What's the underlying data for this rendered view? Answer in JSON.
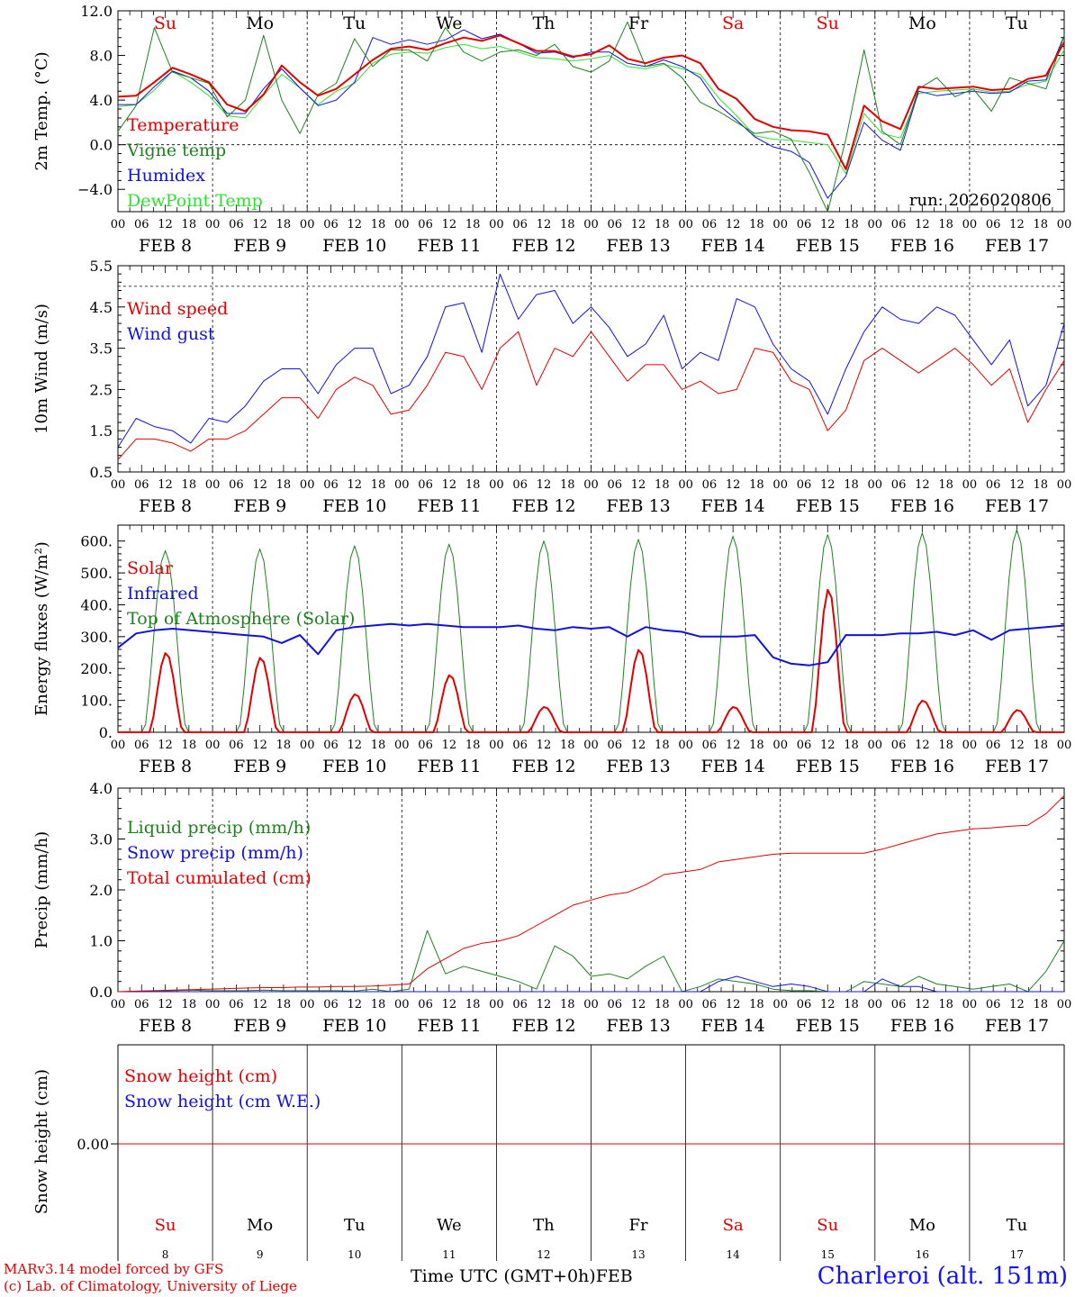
{
  "chart_data": [
    {
      "type": "line",
      "id": "temp",
      "ylabel": "2m Temp. (°C)",
      "ylim": [
        -6.0,
        12.0
      ],
      "yticks": [
        -4.0,
        0.0,
        4.0,
        8.0,
        12.0
      ],
      "ytick_labels": [
        "−4.0",
        "0.0",
        "4.0",
        "8.0",
        "12.0"
      ],
      "dashed_y": [
        0.0
      ],
      "run_label": "run: 2026020806",
      "x_step_hours": 6,
      "series": [
        {
          "name": "Temperature",
          "color": "#e00000",
          "width": 2,
          "values": [
            4.3,
            4.4,
            5.6,
            6.9,
            6.3,
            5.6,
            3.6,
            3.0,
            4.5,
            7.1,
            5.6,
            4.4,
            5.0,
            6.3,
            7.6,
            8.6,
            8.8,
            8.5,
            9.1,
            9.6,
            9.3,
            9.8,
            9.1,
            8.4,
            8.4,
            7.9,
            8.1,
            8.9,
            7.7,
            7.3,
            7.8,
            8.0,
            7.3,
            5.0,
            4.1,
            2.3,
            1.6,
            1.3,
            1.2,
            0.9,
            -2.2,
            3.5,
            2.1,
            1.4,
            5.2,
            5.0,
            5.1,
            5.2,
            4.9,
            5.0,
            5.9,
            6.2,
            9.2
          ]
        },
        {
          "name": "Vigne temp",
          "color": "#208020",
          "width": 1,
          "values": [
            1.2,
            3.5,
            10.5,
            6.5,
            6.0,
            5.5,
            2.5,
            4.0,
            9.8,
            4.0,
            1.0,
            4.5,
            5.5,
            9.5,
            7.0,
            8.5,
            8.5,
            7.5,
            10.5,
            8.3,
            7.5,
            8.3,
            8.5,
            8.0,
            9.0,
            7.0,
            6.5,
            7.5,
            11.0,
            7.0,
            7.3,
            6.0,
            3.8,
            3.0,
            2.0,
            1.0,
            1.2,
            0.5,
            -2.5,
            -6.0,
            0.5,
            8.5,
            1.2,
            0.0,
            5.0,
            6.0,
            4.3,
            5.0,
            3.0,
            6.0,
            5.5,
            5.0,
            9.8
          ]
        },
        {
          "name": "Humidex",
          "color": "#1010e0",
          "width": 1,
          "values": [
            3.6,
            3.6,
            5.2,
            6.6,
            6.0,
            4.8,
            2.8,
            2.8,
            5.0,
            6.8,
            5.1,
            3.5,
            4.0,
            5.6,
            9.6,
            9.0,
            9.4,
            9.0,
            9.4,
            10.3,
            9.5,
            9.9,
            9.1,
            8.2,
            8.3,
            7.8,
            8.3,
            8.3,
            7.3,
            7.0,
            7.6,
            7.0,
            6.0,
            3.6,
            2.2,
            0.7,
            -0.2,
            -0.6,
            -1.6,
            -4.8,
            -2.8,
            2.0,
            0.4,
            -0.5,
            4.8,
            4.4,
            4.6,
            4.8,
            4.6,
            4.7,
            5.7,
            5.8,
            9.8
          ]
        },
        {
          "name": "DewPoint Temp",
          "color": "#30e030",
          "width": 1,
          "values": [
            3.4,
            3.6,
            4.9,
            6.6,
            5.6,
            4.4,
            2.6,
            2.4,
            4.4,
            6.3,
            5.1,
            3.6,
            4.8,
            5.5,
            7.3,
            8.1,
            8.3,
            8.2,
            8.7,
            9.0,
            8.6,
            8.8,
            8.3,
            7.8,
            7.7,
            7.5,
            7.7,
            8.0,
            7.0,
            6.8,
            7.2,
            6.8,
            6.3,
            4.2,
            2.6,
            0.8,
            0.5,
            0.4,
            0.2,
            0.0,
            -2.6,
            2.8,
            1.0,
            0.6,
            4.6,
            4.8,
            4.9,
            5.0,
            4.7,
            4.8,
            5.4,
            5.7,
            8.5
          ]
        }
      ],
      "legend": [
        "Temperature",
        "Vigne temp",
        "Humidex",
        "DewPoint Temp"
      ]
    },
    {
      "type": "line",
      "id": "wind",
      "ylabel": "10m Wind (m/s)",
      "ylim": [
        0.5,
        5.5
      ],
      "yticks": [
        0.5,
        1.5,
        2.5,
        3.5,
        4.5,
        5.5
      ],
      "ytick_labels": [
        "0.5",
        "1.5",
        "2.5",
        "3.5",
        "4.5",
        "5.5"
      ],
      "dashed_y": [
        5.0
      ],
      "x_step_hours": 6,
      "series": [
        {
          "name": "Wind speed",
          "color": "#e00000",
          "width": 1,
          "values": [
            0.8,
            1.3,
            1.3,
            1.2,
            1.0,
            1.3,
            1.3,
            1.5,
            1.9,
            2.3,
            2.3,
            1.8,
            2.5,
            2.8,
            2.6,
            1.9,
            2.0,
            2.6,
            3.4,
            3.3,
            2.5,
            3.5,
            3.9,
            2.6,
            3.5,
            3.3,
            3.9,
            3.3,
            2.7,
            3.1,
            3.1,
            2.5,
            2.7,
            2.4,
            2.5,
            3.5,
            3.4,
            2.7,
            2.5,
            1.5,
            2.0,
            3.2,
            3.5,
            3.2,
            2.9,
            3.2,
            3.5,
            3.1,
            2.6,
            3.0,
            1.7,
            2.5,
            3.2
          ]
        },
        {
          "name": "Wind gust",
          "color": "#1010e0",
          "width": 1,
          "values": [
            1.1,
            1.8,
            1.6,
            1.5,
            1.2,
            1.8,
            1.7,
            2.1,
            2.7,
            3.0,
            3.0,
            2.4,
            3.1,
            3.5,
            3.5,
            2.4,
            2.6,
            3.3,
            4.5,
            4.6,
            3.4,
            5.3,
            4.2,
            4.8,
            4.9,
            4.1,
            4.5,
            4.0,
            3.3,
            3.6,
            4.3,
            3.0,
            3.4,
            3.2,
            4.7,
            4.5,
            3.6,
            3.0,
            2.7,
            1.9,
            3.0,
            3.9,
            4.5,
            4.2,
            4.1,
            4.5,
            4.3,
            3.7,
            3.1,
            3.7,
            2.1,
            2.6,
            4.1
          ]
        }
      ],
      "legend": [
        "Wind speed",
        "Wind gust"
      ]
    },
    {
      "type": "line",
      "id": "energy",
      "ylabel": "Energy fluxes (W/m²)",
      "ylim": [
        0,
        650
      ],
      "yticks": [
        0,
        100,
        200,
        300,
        400,
        500,
        600
      ],
      "ytick_labels": [
        "0.",
        "100.",
        "200.",
        "300.",
        "400.",
        "500.",
        "600."
      ],
      "x_step_hours": 6,
      "series": [
        {
          "name": "Solar",
          "color": "#e00000",
          "width": 2,
          "peaks": [
            250,
            235,
            120,
            180,
            80,
            260,
            80,
            450,
            100,
            70
          ]
        },
        {
          "name": "Infrared",
          "color": "#1010e0",
          "width": 2,
          "values": [
            265,
            310,
            320,
            325,
            320,
            315,
            310,
            305,
            300,
            280,
            305,
            245,
            320,
            330,
            335,
            340,
            335,
            340,
            335,
            330,
            330,
            330,
            335,
            325,
            320,
            330,
            325,
            330,
            300,
            330,
            320,
            315,
            300,
            300,
            300,
            305,
            235,
            215,
            210,
            220,
            305,
            305,
            305,
            310,
            310,
            315,
            305,
            320,
            290,
            320,
            325,
            330,
            335
          ]
        },
        {
          "name": "Top of Atmosphere (Solar)",
          "color": "#208020",
          "width": 1,
          "peaks": [
            570,
            575,
            585,
            590,
            600,
            605,
            615,
            620,
            625,
            635
          ]
        }
      ],
      "legend": [
        "Solar",
        "Infrared",
        "Top of Atmosphere (Solar)"
      ]
    },
    {
      "type": "line",
      "id": "precip",
      "ylabel": "Precip (mm/h)",
      "ylim": [
        0,
        4.0
      ],
      "yticks": [
        0.0,
        1.0,
        2.0,
        3.0,
        4.0
      ],
      "ytick_labels": [
        "0.0",
        "1.0",
        "2.0",
        "3.0",
        "4.0"
      ],
      "x_step_hours": 6,
      "series": [
        {
          "name": "Liquid precip (mm/h)",
          "color": "#208020",
          "width": 1,
          "values": [
            0,
            0,
            0.01,
            0.02,
            0.03,
            0.02,
            0.02,
            0.02,
            0.03,
            0.02,
            0.02,
            0.02,
            0.02,
            0.01,
            0.05,
            0.0,
            0.05,
            1.2,
            0.35,
            0.5,
            0.4,
            0.3,
            0.2,
            0.05,
            0.9,
            0.7,
            0.3,
            0.35,
            0.25,
            0.5,
            0.7,
            0.0,
            0.1,
            0.25,
            0.2,
            0.15,
            0.05,
            0.02,
            0.02,
            0.0,
            0.0,
            0.2,
            0.15,
            0.1,
            0.3,
            0.15,
            0.1,
            0.05,
            0.1,
            0.15,
            0.0,
            0.4,
            1.0
          ]
        },
        {
          "name": "Snow precip (mm/h)",
          "color": "#1010e0",
          "width": 1,
          "values": [
            0,
            0,
            0,
            0,
            0,
            0,
            0,
            0,
            0,
            0,
            0,
            0,
            0,
            0,
            0,
            0,
            0,
            0,
            0,
            0,
            0,
            0,
            0,
            0,
            0,
            0,
            0,
            0,
            0,
            0,
            0,
            0,
            0,
            0.2,
            0.3,
            0.2,
            0.1,
            0.15,
            0.1,
            0,
            0,
            0,
            0.25,
            0.1,
            0.1,
            0,
            0,
            0,
            0,
            0,
            0,
            0,
            0
          ]
        },
        {
          "name": "Total cumulated (cm)",
          "color": "#e00000",
          "width": 1,
          "values": [
            0,
            0.01,
            0.02,
            0.03,
            0.04,
            0.05,
            0.06,
            0.07,
            0.08,
            0.08,
            0.09,
            0.09,
            0.1,
            0.1,
            0.11,
            0.13,
            0.15,
            0.45,
            0.65,
            0.85,
            0.95,
            1.0,
            1.1,
            1.3,
            1.5,
            1.7,
            1.8,
            1.9,
            1.95,
            2.1,
            2.3,
            2.35,
            2.4,
            2.55,
            2.6,
            2.65,
            2.7,
            2.72,
            2.72,
            2.72,
            2.72,
            2.72,
            2.8,
            2.9,
            3.0,
            3.1,
            3.15,
            3.2,
            3.22,
            3.25,
            3.27,
            3.5,
            3.85
          ]
        }
      ],
      "legend": [
        "Liquid precip (mm/h)",
        "Snow precip (mm/h)",
        "Total cumulated (cm)"
      ]
    },
    {
      "type": "line",
      "id": "snow",
      "ylabel": "Snow height (cm)",
      "ytick_labels": [
        "0.00"
      ],
      "x_step_hours": 6,
      "series": [
        {
          "name": "Snow height (cm)",
          "color": "#e00000",
          "width": 1,
          "values": [
            0.0,
            0.0
          ]
        },
        {
          "name": "Snow height (cm W.E.)",
          "color": "#1010e0",
          "width": 1,
          "values": [
            0.0,
            0.0
          ]
        }
      ],
      "legend": [
        "Snow height (cm)",
        "Snow height (cm W.E.)"
      ]
    }
  ],
  "axis": {
    "days_top": [
      "Su",
      "Mo",
      "Tu",
      "We",
      "Th",
      "Fr",
      "Sa",
      "Su",
      "Mo",
      "Tu"
    ],
    "day_colors": [
      "#e00000",
      "#000000",
      "#000000",
      "#000000",
      "#000000",
      "#000000",
      "#e00000",
      "#e00000",
      "#000000",
      "#000000"
    ],
    "hour_labels": [
      "00",
      "06",
      "12",
      "18"
    ],
    "final_hour_label": "00",
    "date_labels": [
      "FEB  8",
      "FEB  9",
      "FEB 10",
      "FEB 11",
      "FEB 12",
      "FEB 13",
      "FEB 14",
      "FEB 15",
      "FEB 16",
      "FEB 17"
    ],
    "bottom_day_numbers": [
      "8",
      "9",
      "10",
      "11",
      "12",
      "13",
      "14",
      "15",
      "16",
      "17"
    ],
    "xlabel": "Time UTC (GMT+0h)",
    "month_label": "FEB"
  },
  "footer": {
    "model_line": "MARv3.14 model forced by GFS",
    "credit_line": "(c) Lab. of Climatology, University of Liege",
    "station": "Charleroi (alt. 151m)"
  }
}
